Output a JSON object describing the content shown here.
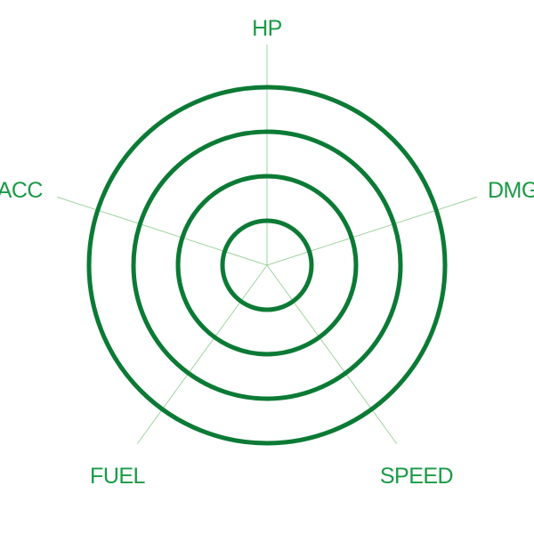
{
  "colors": {
    "ring": "#0b7a35",
    "spoke": "#9fd39f",
    "label": "#1a9a46",
    "background": "#ffffff"
  },
  "rings": 4,
  "axes": [
    {
      "id": "hp",
      "label": "HP"
    },
    {
      "id": "dmg",
      "label": "DMG"
    },
    {
      "id": "speed",
      "label": "SPEED"
    },
    {
      "id": "fuel",
      "label": "FUEL"
    },
    {
      "id": "acc",
      "label": "ACC"
    }
  ]
}
